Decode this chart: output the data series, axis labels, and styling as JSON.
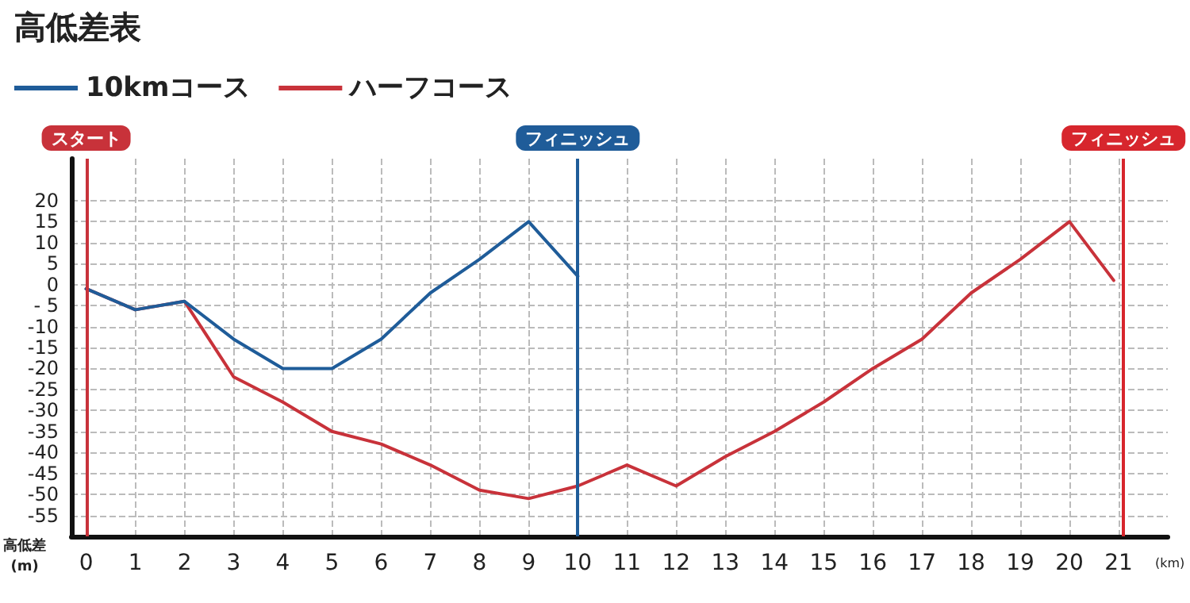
{
  "chart_data": {
    "type": "line",
    "title": "高低差表",
    "xlabel": "(km)",
    "ylabel": "高低差\n(m)",
    "x": [
      0,
      1,
      2,
      3,
      4,
      5,
      6,
      7,
      8,
      9,
      10,
      11,
      12,
      13,
      14,
      15,
      16,
      17,
      18,
      19,
      20,
      20.9
    ],
    "series": [
      {
        "name": "ハーフコース",
        "color": "#c8323a",
        "values": [
          -1,
          -6,
          -4,
          -22,
          -28,
          -35,
          -38,
          -43,
          -49,
          -51,
          -48,
          -43,
          -48,
          -41,
          -35,
          -28,
          -20,
          -13,
          -2,
          6,
          15,
          1
        ]
      },
      {
        "name": "10kmコース",
        "color": "#1f5c99",
        "x": [
          0,
          1,
          2,
          3,
          4,
          5,
          6,
          7,
          8,
          9,
          10
        ],
        "values": [
          -1,
          -6,
          -4,
          -13,
          -20,
          -20,
          -13,
          -2,
          6,
          15,
          2
        ]
      }
    ],
    "xlim": [
      -0.3,
      22
    ],
    "xticks": [
      0,
      1,
      2,
      3,
      4,
      5,
      6,
      7,
      8,
      9,
      10,
      11,
      12,
      13,
      14,
      15,
      16,
      17,
      18,
      19,
      20,
      21
    ],
    "ylim": [
      -60,
      30
    ],
    "yticks": [
      -55,
      -50,
      -45,
      -40,
      -35,
      -30,
      -25,
      -20,
      -15,
      -10,
      {
        "value": -5,
        "label": "- 5"
      },
      0,
      5,
      10,
      15,
      20
    ],
    "ref_lines": [
      {
        "axis": "x",
        "value": 0,
        "label": "スタート",
        "color": "#c8323a"
      },
      {
        "axis": "x",
        "value": 10,
        "label": "フィニッシュ",
        "color": "#1f5c99"
      },
      {
        "axis": "x",
        "value": 21.1,
        "label": "フィニッシュ",
        "color": "#d7262d"
      }
    ],
    "grid": true,
    "legend": "top left",
    "marker": "none",
    "line_style": "solid"
  }
}
